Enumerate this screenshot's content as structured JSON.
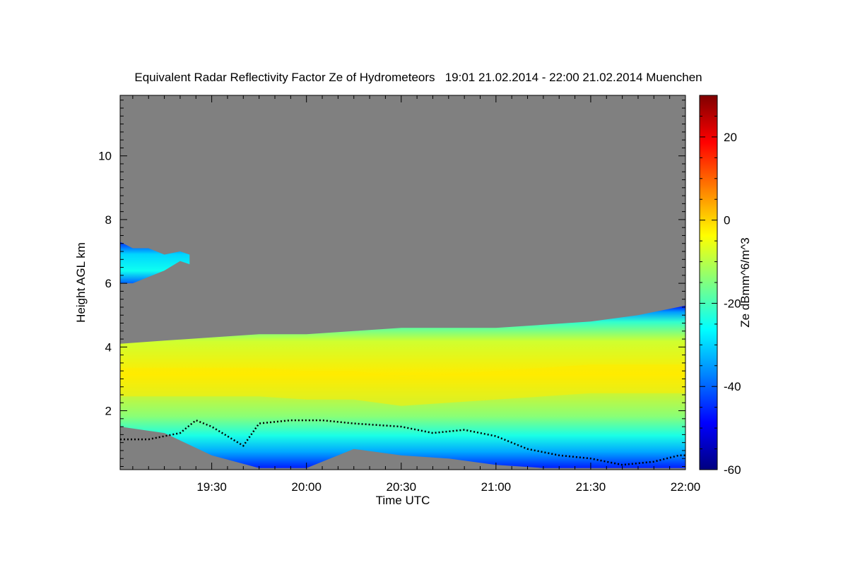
{
  "chart_data": {
    "type": "heatmap",
    "title": "Equivalent Radar Reflectivity Factor Ze of Hydrometeors   19:01 21.02.2014 - 22:00 21.02.2014 Muenchen",
    "xlabel": "Time UTC",
    "ylabel": "Height AGL km",
    "colorbar_label": "Ze dBmm^6/m^3",
    "x_range": [
      "19:01",
      "22:00"
    ],
    "x_ticks": [
      "19:30",
      "20:00",
      "20:30",
      "21:00",
      "21:30",
      "22:00"
    ],
    "y_range_km": [
      0.15,
      11.9
    ],
    "y_ticks": [
      "2",
      "4",
      "6",
      "8",
      "10"
    ],
    "colorbar_range": [
      -60,
      30
    ],
    "colorbar_ticks": [
      "-60",
      "-40",
      "-20",
      "0",
      "20"
    ],
    "colormap": [
      "#00007f",
      "#0000ff",
      "#0080ff",
      "#00ffff",
      "#80ff80",
      "#ffff00",
      "#ff8000",
      "#ff0000",
      "#7f0000"
    ],
    "no_signal_color": "#808080",
    "cloud_layers": [
      {
        "name": "upper-cloud",
        "times": [
          "19:01",
          "19:05",
          "19:10",
          "19:15",
          "19:20",
          "19:23"
        ],
        "top_km": [
          7.3,
          7.1,
          7.1,
          6.9,
          7.0,
          6.9
        ],
        "base_km": [
          6.0,
          6.0,
          6.2,
          6.4,
          6.7,
          6.6
        ]
      },
      {
        "name": "main-cloud",
        "times": [
          "19:01",
          "19:15",
          "19:30",
          "19:45",
          "20:00",
          "20:15",
          "20:30",
          "20:45",
          "21:00",
          "21:15",
          "21:30",
          "21:45",
          "22:00"
        ],
        "top_km": [
          4.1,
          4.2,
          4.3,
          4.4,
          4.4,
          4.5,
          4.6,
          4.6,
          4.6,
          4.7,
          4.8,
          5.0,
          5.3
        ],
        "base_km": [
          1.5,
          1.3,
          0.6,
          0.2,
          0.2,
          0.8,
          0.6,
          0.5,
          0.3,
          0.2,
          0.2,
          0.2,
          0.2
        ],
        "core_km": [
          2.9,
          2.9,
          2.9,
          2.9,
          2.8,
          2.8,
          2.6,
          2.7,
          2.8,
          2.9,
          3.0,
          3.0,
          3.0
        ],
        "core_ze_dbz": [
          -4,
          -3,
          -2,
          -2,
          -1,
          -1,
          0,
          -1,
          -2,
          -3,
          -3,
          -2,
          -3
        ]
      }
    ],
    "cloud_base_line": {
      "times": [
        "19:01",
        "19:10",
        "19:20",
        "19:25",
        "19:30",
        "19:40",
        "19:45",
        "19:55",
        "20:05",
        "20:15",
        "20:30",
        "20:40",
        "20:50",
        "21:00",
        "21:10",
        "21:20",
        "21:30",
        "21:40",
        "21:50",
        "21:58",
        "22:00"
      ],
      "height_km": [
        1.1,
        1.1,
        1.3,
        1.7,
        1.5,
        0.9,
        1.6,
        1.7,
        1.7,
        1.6,
        1.5,
        1.3,
        1.4,
        1.2,
        0.8,
        0.6,
        0.5,
        0.3,
        0.4,
        0.6,
        0.6
      ]
    },
    "grid": false,
    "legend": "colorbar-right"
  }
}
